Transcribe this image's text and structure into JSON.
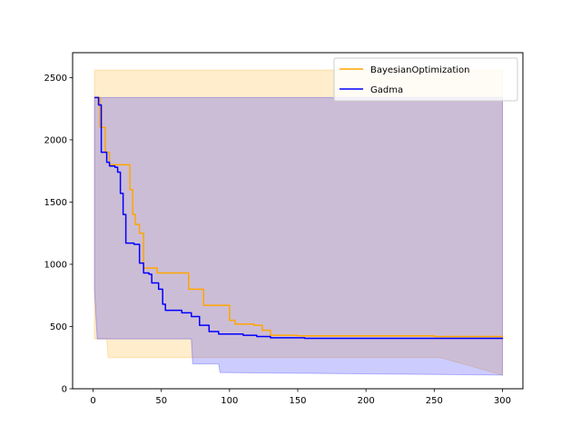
{
  "chart_data": {
    "type": "line",
    "title": "",
    "xlabel": "",
    "ylabel": "",
    "xlim": [
      -15,
      315
    ],
    "ylim": [
      0,
      2700
    ],
    "xticks": [
      0,
      50,
      100,
      150,
      200,
      250,
      300
    ],
    "yticks": [
      0,
      500,
      1000,
      1500,
      2000,
      2500
    ],
    "grid": false,
    "legend_position": "top-right",
    "series": [
      {
        "name": "BayesianOptimization",
        "color": "#ffa500",
        "values": [
          [
            1,
            2340
          ],
          [
            5,
            2100
          ],
          [
            9,
            1900
          ],
          [
            12,
            1800
          ],
          [
            18,
            1800
          ],
          [
            26,
            1800
          ],
          [
            27,
            1600
          ],
          [
            29,
            1400
          ],
          [
            31,
            1320
          ],
          [
            34,
            1250
          ],
          [
            37,
            970
          ],
          [
            47,
            930
          ],
          [
            70,
            800
          ],
          [
            81,
            670
          ],
          [
            100,
            550
          ],
          [
            104,
            520
          ],
          [
            118,
            510
          ],
          [
            124,
            470
          ],
          [
            130,
            430
          ],
          [
            150,
            425
          ],
          [
            250,
            420
          ],
          [
            300,
            410
          ]
        ],
        "band": [
          [
            1,
            2560,
            1250
          ],
          [
            1,
            2560,
            400
          ],
          [
            10,
            2560,
            400
          ],
          [
            11,
            2560,
            250
          ],
          [
            255,
            2560,
            250
          ],
          [
            300,
            2560,
            110
          ]
        ]
      },
      {
        "name": "Gadma",
        "color": "#0000ff",
        "values": [
          [
            1,
            2340
          ],
          [
            4,
            2280
          ],
          [
            6,
            1900
          ],
          [
            10,
            1820
          ],
          [
            12,
            1790
          ],
          [
            16,
            1780
          ],
          [
            18,
            1740
          ],
          [
            20,
            1570
          ],
          [
            22,
            1400
          ],
          [
            24,
            1170
          ],
          [
            30,
            1160
          ],
          [
            34,
            1010
          ],
          [
            37,
            930
          ],
          [
            41,
            920
          ],
          [
            43,
            850
          ],
          [
            48,
            800
          ],
          [
            51,
            680
          ],
          [
            53,
            630
          ],
          [
            60,
            630
          ],
          [
            65,
            610
          ],
          [
            72,
            580
          ],
          [
            78,
            510
          ],
          [
            85,
            460
          ],
          [
            92,
            440
          ],
          [
            110,
            430
          ],
          [
            120,
            420
          ],
          [
            130,
            410
          ],
          [
            155,
            405
          ],
          [
            300,
            400
          ]
        ],
        "band": [
          [
            1,
            2340,
            1200
          ],
          [
            1,
            2340,
            800
          ],
          [
            3,
            2340,
            400
          ],
          [
            72,
            2340,
            400
          ],
          [
            73,
            2340,
            200
          ],
          [
            92,
            2340,
            200
          ],
          [
            93,
            2340,
            130
          ],
          [
            300,
            2340,
            110
          ]
        ]
      }
    ]
  }
}
